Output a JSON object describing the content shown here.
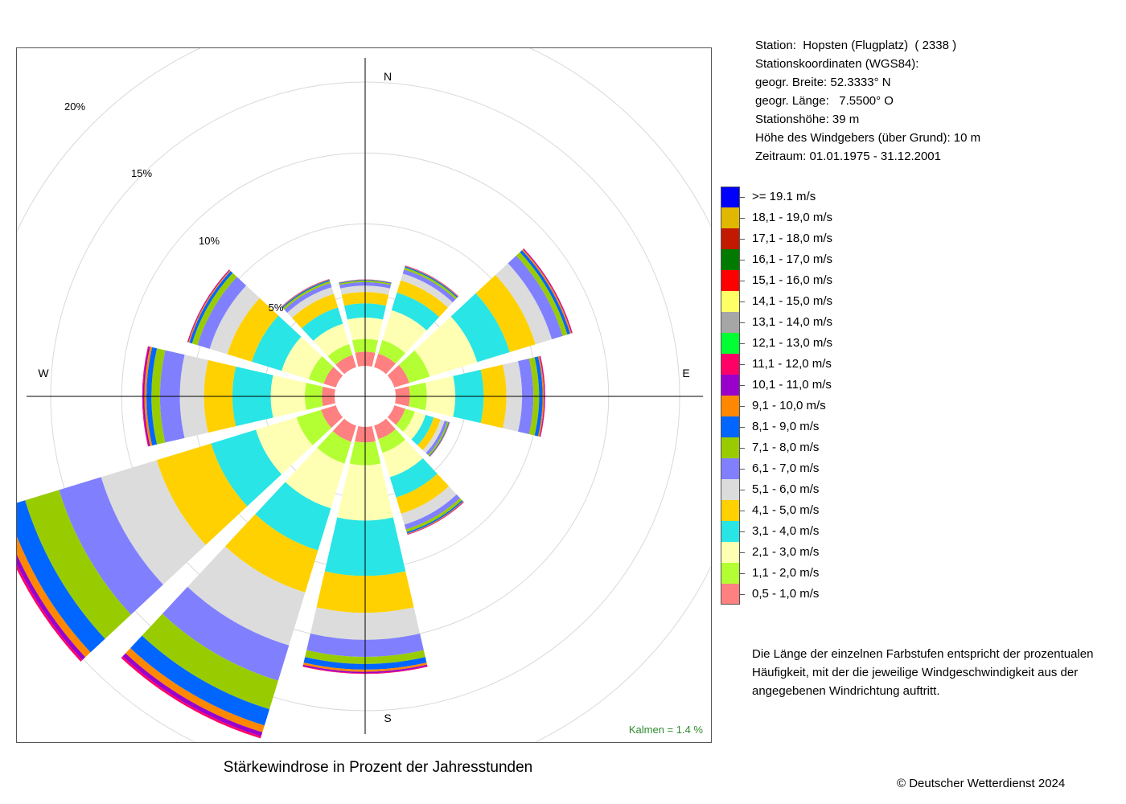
{
  "station": {
    "line1": "Station:  Hopsten (Flugplatz)  ( 2338 )",
    "line2": "Stationskoordinaten (WGS84):",
    "line3": "geogr. Breite: 52.3333° N",
    "line4": "geogr. Länge:   7.5500° O",
    "line5": "Stationshöhe: 39 m",
    "line6": "Höhe des Windgebers (über Grund): 10 m",
    "line7": "Zeitraum: 01.01.1975 - 31.12.2001"
  },
  "explanation": "Die Länge der einzelnen Farbstufen entspricht der prozentualen Häufigkeit, mit der die jeweilige Windgeschwindigkeit aus der angegebenen Windrichtung auftritt.",
  "copyright": "© Deutscher Wetterdienst  2024",
  "calm": "Kalmen  =  1.4 %",
  "chart_data": {
    "type": "wind-rose",
    "title": "Stärkewindrose in Prozent der Jahresstunden",
    "direction_labels": [
      "N",
      "E",
      "S",
      "W"
    ],
    "ring_labels": [
      "5%",
      "10%",
      "15%",
      "20%"
    ],
    "rings": [
      5,
      10,
      15,
      20,
      25
    ],
    "grid": true,
    "sector_width_deg": 30,
    "speed_classes": [
      {
        "label": "0,5 - 1,0 m/s",
        "color": "#ff8080"
      },
      {
        "label": "1,1 - 2,0 m/s",
        "color": "#b3ff33"
      },
      {
        "label": "2,1 - 3,0 m/s",
        "color": "#ffffb3"
      },
      {
        "label": "3,1 - 4,0 m/s",
        "color": "#29e5e5"
      },
      {
        "label": "4,1 - 5,0 m/s",
        "color": "#ffd100"
      },
      {
        "label": "5,1 - 6,0 m/s",
        "color": "#dcdcdc"
      },
      {
        "label": "6,1 - 7,0 m/s",
        "color": "#8080ff"
      },
      {
        "label": "7,1 - 8,0 m/s",
        "color": "#99cc00"
      },
      {
        "label": "8,1 - 9,0 m/s",
        "color": "#0066ff"
      },
      {
        "label": "9,1 - 10,0 m/s",
        "color": "#ff8800"
      },
      {
        "label": "10,1 - 11,0 m/s",
        "color": "#9900cc"
      },
      {
        "label": "11,1 - 12,0 m/s",
        "color": "#ff0066"
      },
      {
        "label": "12,1 - 13,0 m/s",
        "color": "#00ff33"
      },
      {
        "label": "13,1 - 14,0 m/s",
        "color": "#a6a6a6"
      },
      {
        "label": "14,1 - 15,0 m/s",
        "color": "#ffff66"
      },
      {
        "label": "15,1 - 16,0 m/s",
        "color": "#ff0000"
      },
      {
        "label": "16,1 - 17,0 m/s",
        "color": "#007a00"
      },
      {
        "label": "17,1 - 18,0 m/s",
        "color": "#c21a00"
      },
      {
        "label": "18,1 - 19,0 m/s",
        "color": "#e0b800"
      },
      {
        "label": ">= 19.1 m/s",
        "color": "#0000ff"
      }
    ],
    "sectors": [
      {
        "direction": 0,
        "values": [
          1.0,
          0.9,
          1.5,
          1.0,
          0.8,
          0.45,
          0.25,
          0.1,
          0.05,
          0.02,
          0.01,
          0.01
        ]
      },
      {
        "direction": 30,
        "values": [
          1.0,
          1.0,
          2.2,
          1.3,
          0.9,
          0.5,
          0.3,
          0.15,
          0.08,
          0.04,
          0.02,
          0.01
        ]
      },
      {
        "direction": 60,
        "values": [
          1.1,
          1.5,
          3.5,
          2.4,
          1.9,
          1.2,
          0.8,
          0.35,
          0.2,
          0.1,
          0.05,
          0.03
        ]
      },
      {
        "direction": 90,
        "values": [
          1.0,
          1.2,
          2.0,
          2.0,
          1.6,
          1.1,
          0.8,
          0.4,
          0.25,
          0.1,
          0.05,
          0.03
        ]
      },
      {
        "direction": 120,
        "values": [
          0.8,
          0.7,
          0.8,
          0.6,
          0.5,
          0.3,
          0.2,
          0.1,
          0.05,
          0.02,
          0.01,
          0.01
        ]
      },
      {
        "direction": 150,
        "values": [
          1.0,
          1.0,
          1.8,
          1.5,
          1.2,
          0.8,
          0.35,
          0.2,
          0.1,
          0.05,
          0.03,
          0.02
        ]
      },
      {
        "direction": 180,
        "values": [
          1.1,
          1.6,
          3.9,
          3.9,
          2.6,
          1.9,
          1.2,
          0.5,
          0.4,
          0.15,
          0.1,
          0.05
        ]
      },
      {
        "direction": 210,
        "values": [
          1.2,
          1.6,
          3.3,
          3.1,
          3.1,
          3.9,
          2.6,
          2.1,
          1.2,
          0.5,
          0.3,
          0.15
        ]
      },
      {
        "direction": 240,
        "values": [
          1.1,
          1.8,
          3.0,
          3.3,
          4.0,
          4.1,
          3.1,
          2.5,
          1.4,
          0.5,
          0.3,
          0.15
        ]
      },
      {
        "direction": 270,
        "values": [
          0.9,
          1.2,
          2.4,
          2.7,
          2.0,
          1.7,
          1.4,
          0.6,
          0.35,
          0.15,
          0.1,
          0.05
        ]
      },
      {
        "direction": 300,
        "values": [
          0.9,
          1.1,
          2.0,
          2.2,
          1.8,
          1.3,
          0.9,
          0.4,
          0.2,
          0.08,
          0.05,
          0.02
        ]
      },
      {
        "direction": 330,
        "values": [
          0.9,
          0.8,
          1.5,
          1.2,
          1.0,
          0.5,
          0.3,
          0.15,
          0.08,
          0.04,
          0.02,
          0.01
        ]
      }
    ]
  }
}
